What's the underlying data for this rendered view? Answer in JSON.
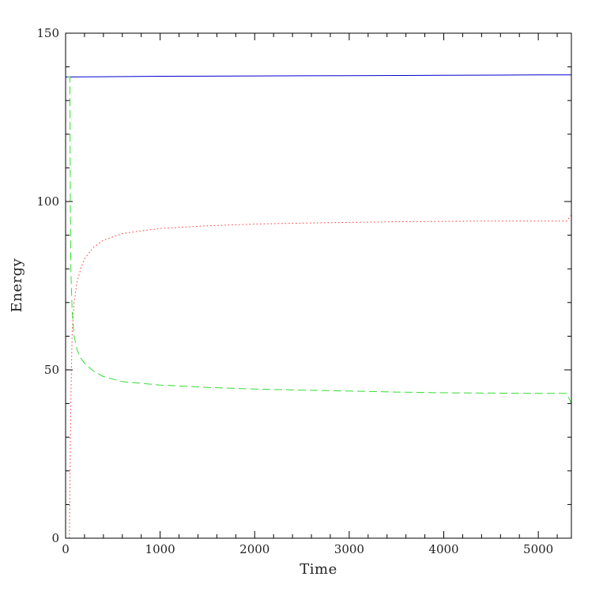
{
  "chart_data": {
    "type": "line",
    "title": "",
    "xlabel": "Time",
    "ylabel": "Energy",
    "xlim": [
      0,
      5350
    ],
    "ylim": [
      0,
      150
    ],
    "x_ticks": [
      0,
      1000,
      2000,
      3000,
      4000,
      5000
    ],
    "x_tick_labels": [
      "0",
      "1000",
      "2000",
      "3000",
      "4000",
      "5000"
    ],
    "y_ticks": [
      0,
      50,
      100,
      150
    ],
    "y_tick_labels": [
      "0",
      "50",
      "100",
      "150"
    ],
    "x_minor_step": 200,
    "y_minor_step": 10,
    "grid": false,
    "legend": "none",
    "series": [
      {
        "color": "#0000cc",
        "style": "solid",
        "points": [
          [
            0,
            137.0
          ],
          [
            500,
            137.1
          ],
          [
            1000,
            137.2
          ],
          [
            2000,
            137.3
          ],
          [
            3000,
            137.4
          ],
          [
            4000,
            137.5
          ],
          [
            5000,
            137.6
          ],
          [
            5350,
            137.6
          ]
        ]
      },
      {
        "color": "#ff3333",
        "style": "dotted",
        "points": [
          [
            40,
            0
          ],
          [
            55,
            40
          ],
          [
            70,
            62
          ],
          [
            90,
            70
          ],
          [
            120,
            76
          ],
          [
            160,
            80
          ],
          [
            200,
            83
          ],
          [
            300,
            86.5
          ],
          [
            400,
            88.5
          ],
          [
            600,
            90.5
          ],
          [
            800,
            91.3
          ],
          [
            1000,
            92
          ],
          [
            1500,
            92.8
          ],
          [
            2000,
            93.3
          ],
          [
            2500,
            93.6
          ],
          [
            3000,
            93.8
          ],
          [
            3500,
            94
          ],
          [
            4000,
            94.1
          ],
          [
            4500,
            94.2
          ],
          [
            5000,
            94.2
          ],
          [
            5300,
            94.2
          ],
          [
            5350,
            96
          ]
        ]
      },
      {
        "color": "#33dd33",
        "style": "dashed",
        "points": [
          [
            20,
            137
          ],
          [
            45,
            137
          ],
          [
            50,
            100
          ],
          [
            55,
            80
          ],
          [
            70,
            67
          ],
          [
            90,
            60
          ],
          [
            120,
            56
          ],
          [
            160,
            53.5
          ],
          [
            200,
            52
          ],
          [
            300,
            49.5
          ],
          [
            400,
            48
          ],
          [
            600,
            46.5
          ],
          [
            800,
            46
          ],
          [
            1000,
            45.5
          ],
          [
            1500,
            44.8
          ],
          [
            2000,
            44.3
          ],
          [
            2500,
            44
          ],
          [
            3000,
            43.7
          ],
          [
            3500,
            43.4
          ],
          [
            4000,
            43.2
          ],
          [
            4500,
            43.1
          ],
          [
            5000,
            43
          ],
          [
            5300,
            43
          ],
          [
            5350,
            40
          ]
        ]
      }
    ]
  }
}
